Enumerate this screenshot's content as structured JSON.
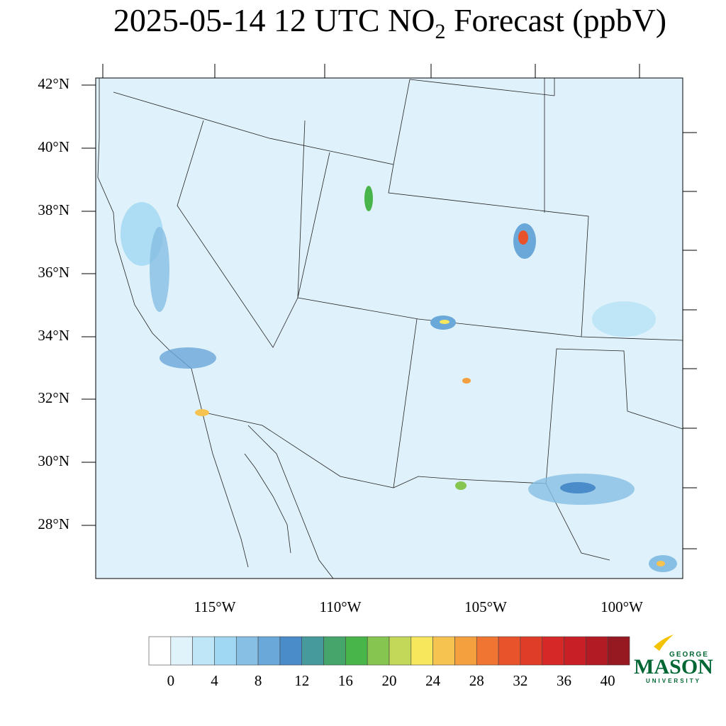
{
  "title": {
    "main": "2025-05-14 12 UTC NO",
    "subscript": "2",
    "rest": " Forecast (ppbV)"
  },
  "map": {
    "lat_labels": [
      "42°N",
      "40°N",
      "38°N",
      "36°N",
      "34°N",
      "32°N",
      "30°N",
      "28°N"
    ],
    "lon_labels": [
      "115°W",
      "110°W",
      "105°W",
      "100°W"
    ]
  },
  "colorbar": {
    "colors": [
      "#ffffff",
      "#e0f3fb",
      "#bfe6f7",
      "#a0d8f3",
      "#86bfe3",
      "#6aa8da",
      "#4a8bc9",
      "#469a9c",
      "#45a56a",
      "#48b54a",
      "#86c54f",
      "#c3d758",
      "#f6e75c",
      "#f6c350",
      "#f5a03f",
      "#f17532",
      "#e8532b",
      "#e03d28",
      "#d72828",
      "#c81f27",
      "#b31b24",
      "#961820"
    ],
    "ticks": [
      0,
      4,
      8,
      12,
      16,
      20,
      24,
      28,
      32,
      36,
      40
    ],
    "step": 2
  },
  "logo": {
    "top": "GEORGE",
    "name": "MASON",
    "bottom": "UNIVERSITY"
  }
}
